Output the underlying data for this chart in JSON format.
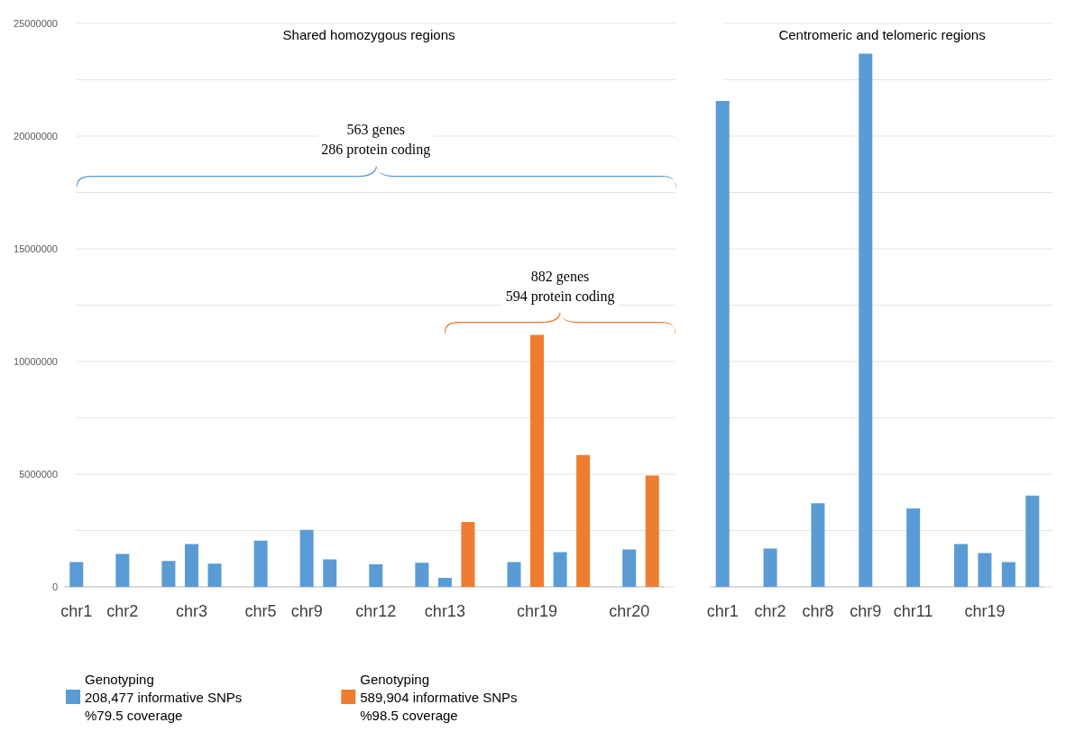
{
  "chart_data": [
    {
      "type": "bar",
      "title": "Shared homozygous regions",
      "categories": [
        "chr1",
        null,
        "chr2",
        null,
        null,
        "chr3",
        null,
        null,
        "chr5",
        null,
        "chr9",
        null,
        null,
        "chr12",
        null,
        null,
        "chr13",
        null,
        null,
        null,
        "chr19",
        null,
        null,
        null,
        "chr20",
        null
      ],
      "series": [
        {
          "name": "Genotyping\n208,477 informative SNPs\n%79.5 coverage",
          "color": "#5b9bd5",
          "values": [
            1100000,
            null,
            1460000,
            null,
            1150000,
            1900000,
            1030000,
            null,
            2050000,
            null,
            2530000,
            1220000,
            null,
            1000000,
            null,
            1070000,
            400000,
            null,
            null,
            1100000,
            null,
            1540000,
            null,
            null,
            1660000,
            null
          ]
        },
        {
          "name": "Genotyping\n589,904 informative SNPs\n%98.5 coverage",
          "color": "#ed7d31",
          "values": [
            null,
            null,
            null,
            null,
            null,
            null,
            null,
            null,
            null,
            null,
            null,
            null,
            null,
            null,
            null,
            null,
            null,
            2880000,
            null,
            null,
            11180000,
            null,
            5850000,
            null,
            null,
            4940000
          ]
        }
      ],
      "ylim": [
        0,
        25000000
      ],
      "yticks": [
        0,
        {
          "value": 2500000,
          "label": null
        },
        5000000,
        {
          "value": 7500000,
          "label": null
        },
        10000000,
        {
          "value": 12500000,
          "label": null
        },
        15000000,
        {
          "value": 17500000,
          "label": null
        },
        20000000,
        {
          "value": 22500000,
          "label": null
        },
        25000000
      ],
      "grid": "y",
      "legend": "bottom",
      "annotations": [
        "563 genes\n286 protein coding",
        "882 genes\n594 protein coding"
      ]
    },
    {
      "type": "bar",
      "title": "Centromeric and telomeric regions",
      "categories": [
        "chr1",
        null,
        "chr2",
        null,
        "chr8",
        null,
        "chr9",
        null,
        "chr11",
        null,
        null,
        "chr19",
        null,
        null
      ],
      "series": [
        {
          "color": "#5b9bd5",
          "values": [
            21560000,
            null,
            1700000,
            null,
            3710000,
            null,
            23660000,
            null,
            3480000,
            null,
            1900000,
            1500000,
            1100000,
            4050000
          ]
        }
      ],
      "ylim": [
        0,
        25000000
      ],
      "yticks": [
        0,
        {
          "value": 2500000,
          "label": null
        },
        5000000,
        {
          "value": 7500000,
          "label": null
        },
        10000000,
        {
          "value": 12500000,
          "label": null
        },
        15000000,
        {
          "value": 17500000,
          "label": null
        },
        20000000,
        {
          "value": 22500000,
          "label": null
        },
        25000000
      ],
      "grid": "y",
      "tick_labels": "x"
    }
  ]
}
